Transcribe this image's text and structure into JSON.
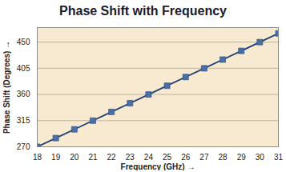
{
  "chart_data": {
    "type": "line",
    "title": "Phase Shift with Frequency",
    "x_label": "Frequency (GHz)",
    "y_label": "Phase Shift (Degrees)",
    "x": [
      18,
      19,
      20,
      21,
      22,
      23,
      24,
      25,
      26,
      27,
      28,
      29,
      30,
      31
    ],
    "values": [
      270,
      285,
      300,
      315,
      330,
      345,
      360,
      375,
      390,
      405,
      420,
      435,
      450,
      465
    ],
    "color": "#4a6fa5",
    "marker": "square",
    "xlim": [
      18,
      31
    ],
    "xticks": [
      18,
      19,
      20,
      21,
      22,
      23,
      24,
      25,
      26,
      27,
      28,
      29,
      30,
      31
    ],
    "ylim": [
      270,
      475
    ],
    "yticks": [
      270,
      315,
      360,
      405,
      450
    ],
    "grid": true
  }
}
